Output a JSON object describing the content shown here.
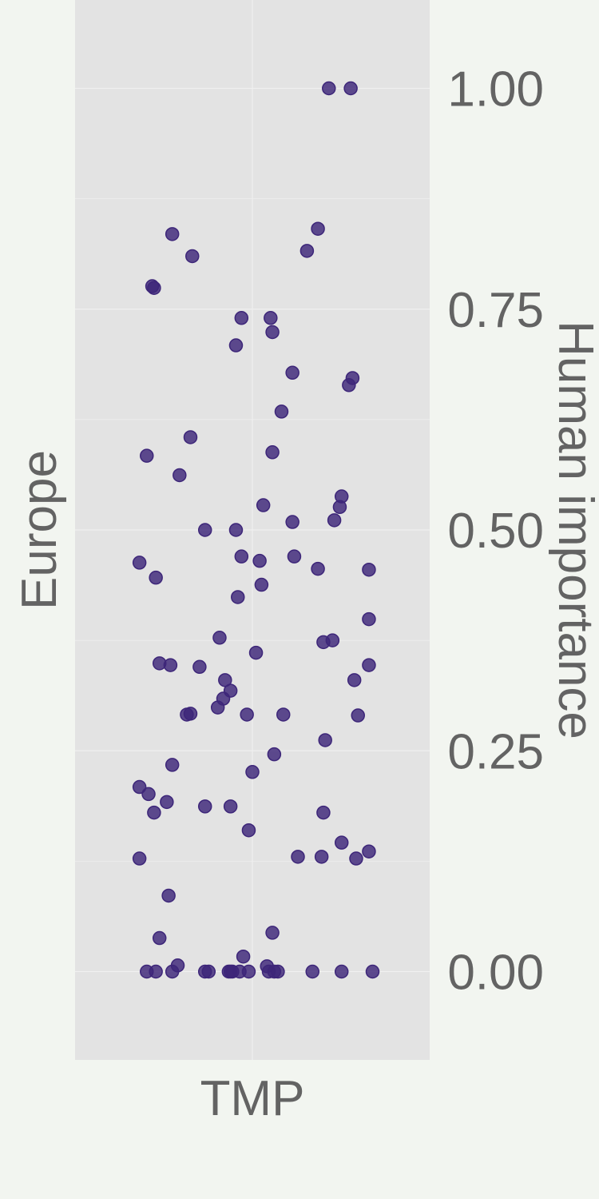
{
  "chart_data": {
    "type": "scatter",
    "xlabel": "TMP",
    "ylabel": "Human importance",
    "facet_label": "Europe",
    "y_ticks": [
      "0.00",
      "0.25",
      "0.50",
      "0.75",
      "1.00"
    ],
    "y_tick_values": [
      0.0,
      0.25,
      0.5,
      0.75,
      1.0
    ],
    "ylim": [
      -0.1,
      1.1
    ],
    "grid": true,
    "series": [
      {
        "values": [
          1.0,
          1.0,
          0.835,
          0.841,
          0.81,
          0.816,
          0.776,
          0.774,
          0.74,
          0.74,
          0.709,
          0.724,
          0.678,
          0.672,
          0.664,
          0.634,
          0.605,
          0.588,
          0.584,
          0.562,
          0.538,
          0.526,
          0.528,
          0.511,
          0.509,
          0.5,
          0.5,
          0.47,
          0.47,
          0.463,
          0.465,
          0.446,
          0.456,
          0.455,
          0.438,
          0.424,
          0.399,
          0.378,
          0.373,
          0.375,
          0.361,
          0.345,
          0.349,
          0.347,
          0.347,
          0.33,
          0.33,
          0.318,
          0.309,
          0.299,
          0.291,
          0.292,
          0.291,
          0.291,
          0.29,
          0.262,
          0.246,
          0.234,
          0.226,
          0.209,
          0.201,
          0.192,
          0.187,
          0.187,
          0.18,
          0.18,
          0.16,
          0.146,
          0.136,
          0.13,
          0.13,
          0.128,
          0.128,
          0.086,
          0.044,
          0.038,
          0.007,
          0.017,
          0.006,
          0.0,
          0.0,
          0.0,
          0.0,
          0.0,
          0.0,
          0.0,
          0.0,
          0.0,
          0.0,
          0.0,
          0.0,
          0.0,
          0.0,
          0.0,
          0.0
        ],
        "jitter": [
          0.42,
          0.54,
          -0.44,
          0.36,
          -0.33,
          0.3,
          -0.55,
          -0.54,
          -0.06,
          0.1,
          -0.09,
          0.11,
          0.22,
          0.55,
          0.53,
          0.16,
          -0.34,
          0.11,
          -0.58,
          -0.4,
          0.49,
          0.48,
          0.06,
          0.45,
          0.22,
          -0.26,
          -0.09,
          -0.06,
          0.23,
          -0.62,
          0.04,
          -0.53,
          0.36,
          0.64,
          0.05,
          -0.08,
          0.64,
          -0.18,
          0.39,
          0.44,
          0.02,
          -0.29,
          -0.51,
          -0.45,
          0.64,
          -0.15,
          0.56,
          -0.12,
          -0.16,
          -0.19,
          -0.03,
          -0.34,
          -0.36,
          0.17,
          0.58,
          0.4,
          0.12,
          -0.44,
          0.0,
          -0.62,
          -0.57,
          -0.47,
          -0.26,
          -0.12,
          -0.54,
          0.39,
          -0.02,
          0.49,
          0.64,
          0.25,
          0.38,
          -0.62,
          0.57,
          -0.46,
          0.11,
          -0.51,
          -0.41,
          -0.05,
          0.08,
          -0.58,
          -0.53,
          -0.44,
          -0.24,
          -0.13,
          -0.11,
          -0.07,
          -0.02,
          0.12,
          0.14,
          0.33,
          0.49,
          0.66,
          -0.12,
          0.09,
          -0.26
        ]
      }
    ],
    "colors": {
      "marker": "#3d2679",
      "panel": "#e3e3e3",
      "background": "#f2f5f0",
      "grid": "#f0f0f0",
      "text": "#636363"
    }
  }
}
